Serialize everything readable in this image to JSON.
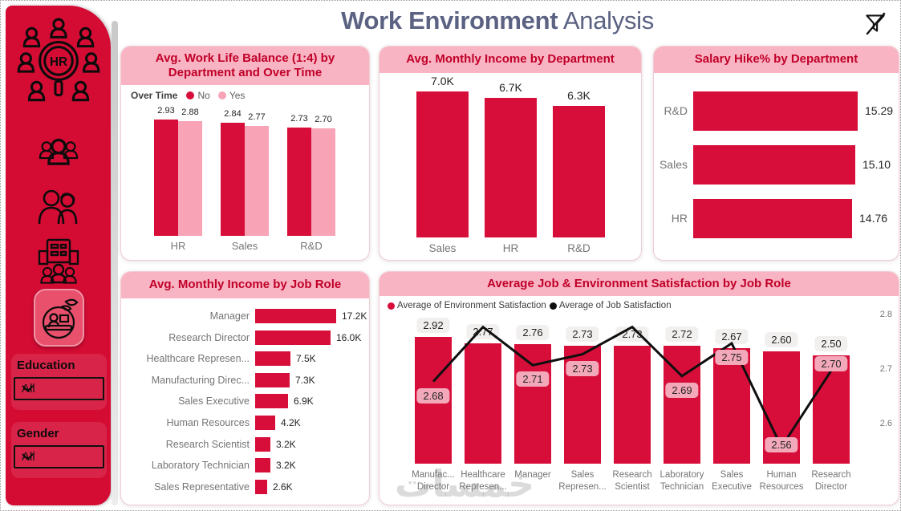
{
  "page": {
    "title": "Work Environment",
    "subtitle": " Analysis"
  },
  "colors": {
    "crimson": "#D80E3A",
    "pink": "#F8A3B6",
    "header_band": "#F9B4C3",
    "header_text": "#C00028",
    "sidebar_red": "#D40C34",
    "title_text": "#5B6282",
    "label_dark": "#252423",
    "label_gray": "#757575",
    "line_black": "#0F0F0F"
  },
  "icons": {
    "clear_filter": "filter-slash-icon",
    "dropdown": "chevron-down-icon",
    "sidebar": [
      "hr-network-logo-icon",
      "people-group-icon",
      "two-people-icon",
      "organization-building-icon",
      "training-desk-icon"
    ]
  },
  "sidebar": {
    "logo_text": "HR",
    "filters": [
      {
        "label": "Education",
        "value": "All"
      },
      {
        "label": "Gender",
        "value": "All"
      }
    ]
  },
  "watermark": "خمسات",
  "chart_data": [
    {
      "id": "work-life-balance",
      "type": "bar",
      "title": "Avg. Work Life Balance (1:4) by Department and Over Time",
      "legend_title": "Over Time",
      "categories": [
        "HR",
        "Sales",
        "R&D"
      ],
      "series": [
        {
          "name": "No",
          "color": "#D80E3A",
          "values": [
            2.93,
            2.84,
            2.73
          ],
          "labels": [
            "2.93",
            "2.84",
            "2.73"
          ]
        },
        {
          "name": "Yes",
          "color": "#F8A3B6",
          "values": [
            2.88,
            2.77,
            2.7
          ],
          "labels": [
            "2.88",
            "2.77",
            "2.70"
          ]
        }
      ],
      "ylim": [
        0,
        3
      ],
      "grid": false,
      "legend_position": "top-left"
    },
    {
      "id": "income-by-department",
      "type": "bar",
      "title": "Avg. Monthly Income by Department",
      "categories": [
        "Sales",
        "HR",
        "R&D"
      ],
      "values": [
        7000,
        6700,
        6300
      ],
      "labels": [
        "7.0K",
        "6.7K",
        "6.3K"
      ],
      "ylim": [
        0,
        7000
      ],
      "grid": false
    },
    {
      "id": "salary-hike-by-department",
      "type": "bar",
      "orientation": "horizontal",
      "title": "Salary Hike% by Department",
      "categories": [
        "R&D",
        "Sales",
        "HR"
      ],
      "values": [
        15.29,
        15.1,
        14.76
      ],
      "labels": [
        "15.29",
        "15.10",
        "14.76"
      ],
      "xlim": [
        0,
        15.29
      ],
      "grid": false
    },
    {
      "id": "income-by-job-role",
      "type": "bar",
      "orientation": "horizontal",
      "title": "Avg. Monthly Income by Job Role",
      "categories": [
        "Manager",
        "Research Director",
        "Healthcare Represen...",
        "Manufacturing Direc...",
        "Sales Executive",
        "Human Resources",
        "Research Scientist",
        "Laboratory Technician",
        "Sales Representative"
      ],
      "values": [
        17200,
        16000,
        7500,
        7300,
        6900,
        4200,
        3200,
        3200,
        2600
      ],
      "labels": [
        "17.2K",
        "16.0K",
        "7.5K",
        "7.3K",
        "6.9K",
        "4.2K",
        "3.2K",
        "3.2K",
        "2.6K"
      ],
      "xlim": [
        0,
        17200
      ],
      "grid": false
    },
    {
      "id": "satisfaction-by-job-role",
      "type": "bar",
      "combo": "bar+line",
      "title": "Average Job & Environment Satisfaction by Job Role",
      "legend": [
        {
          "name": "Average of Environment Satisfaction",
          "color": "#D80E3A",
          "mark": "bar"
        },
        {
          "name": "Average of Job Satisfaction",
          "color": "#0F0F0F",
          "mark": "line"
        }
      ],
      "categories": [
        "Manufac...\nDirector",
        "Healthcare\nRepresen...",
        "Manager",
        "Sales\nRepresen...",
        "Research\nScientist",
        "Laboratory\nTechnician",
        "Sales\nExecutive",
        "Human\nResources",
        "Research\nDirector"
      ],
      "bar_values": [
        2.92,
        2.77,
        2.76,
        2.73,
        2.73,
        2.72,
        2.67,
        2.6,
        2.5
      ],
      "bar_labels": [
        "2.92",
        "2.77",
        "2.76",
        "2.73",
        "2.73",
        "2.72",
        "2.67",
        "2.60",
        "2.50"
      ],
      "line_values": [
        2.68,
        2.78,
        2.71,
        2.73,
        2.78,
        2.69,
        2.75,
        2.56,
        2.7
      ],
      "line_labels": [
        "2.68",
        "",
        "2.71",
        "2.73",
        "",
        "2.69",
        "2.75",
        "2.56",
        "2.70"
      ],
      "line_label_offsets": [
        8,
        0,
        8,
        8,
        0,
        8,
        8,
        -12,
        -18
      ],
      "right_axis_ticks": [
        "2.8",
        "2.7",
        "2.6"
      ],
      "right_axis_range": [
        2.55,
        2.85
      ],
      "grid": false,
      "legend_position": "top-left"
    }
  ]
}
